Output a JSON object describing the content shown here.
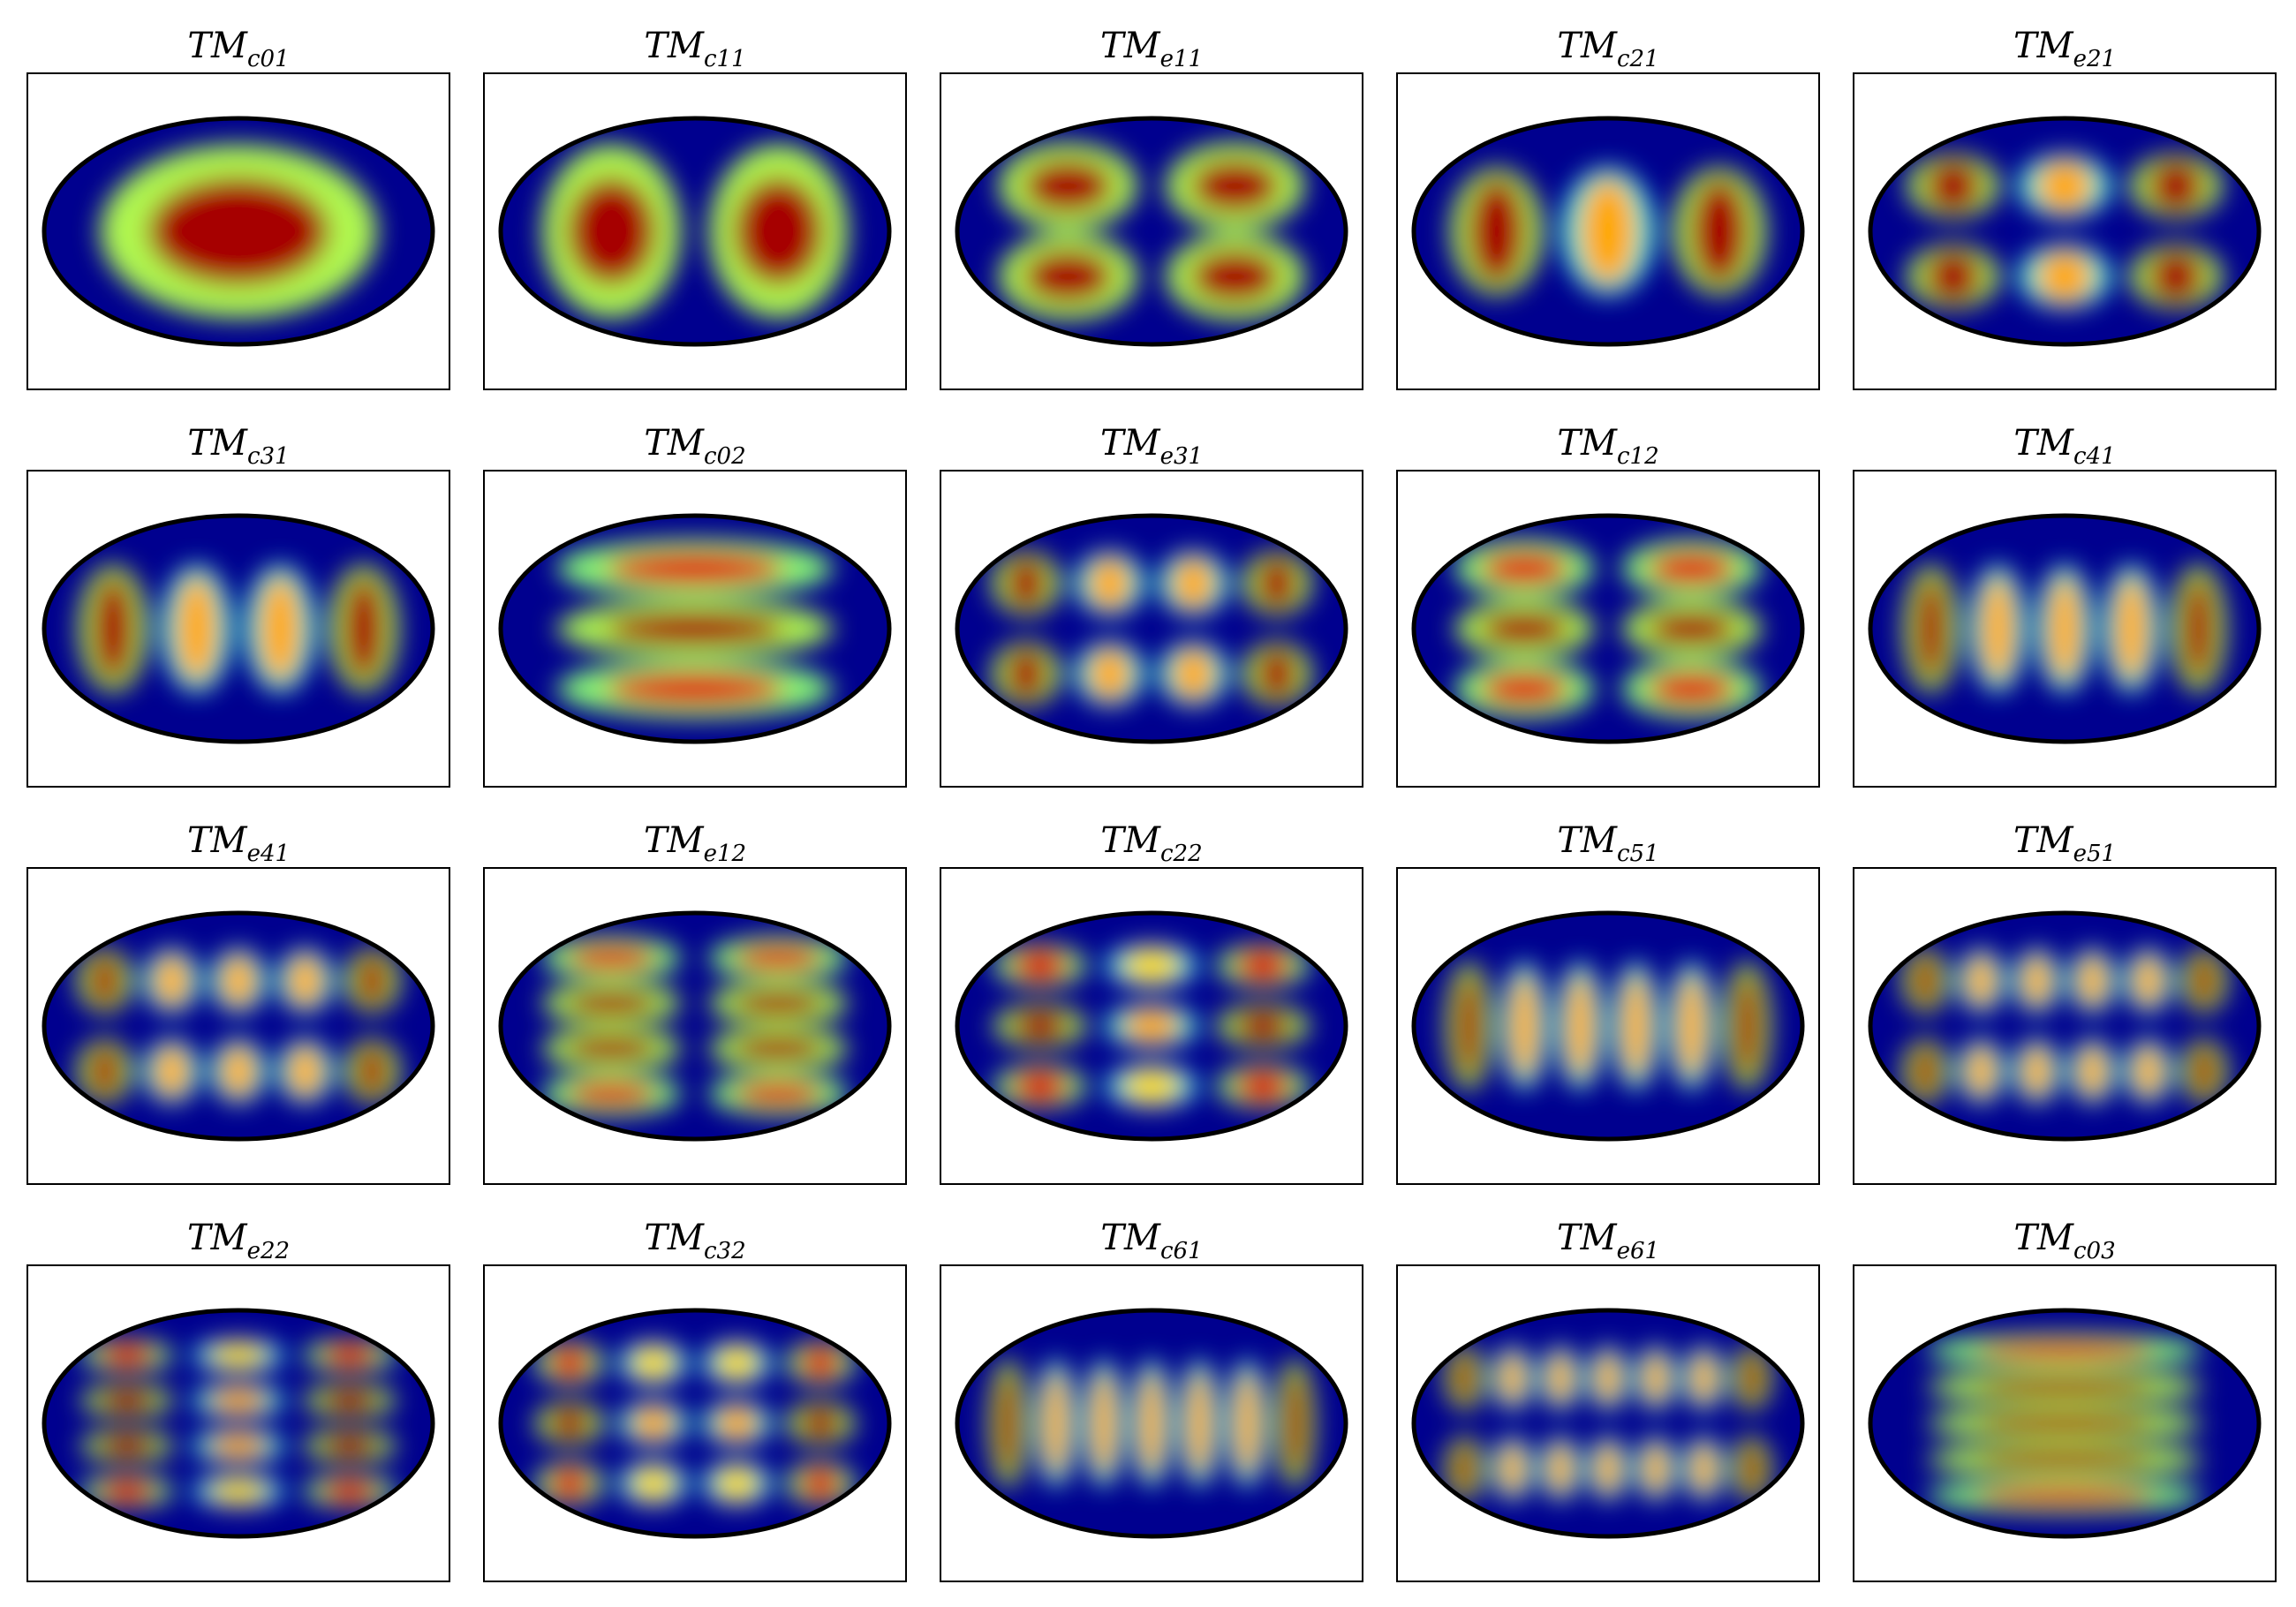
{
  "colors": {
    "background": "#00008f",
    "outline": "#000000",
    "colormap": [
      "#00008f",
      "#0020ff",
      "#00a0ff",
      "#20ffdf",
      "#9fff60",
      "#ffe000",
      "#ff6000",
      "#df0000",
      "#800000"
    ]
  },
  "modes": [
    {
      "label_main": "TM",
      "label_sub": "c01",
      "parity": "c",
      "m": 0,
      "n": 1
    },
    {
      "label_main": "TM",
      "label_sub": "c11",
      "parity": "c",
      "m": 1,
      "n": 1
    },
    {
      "label_main": "TM",
      "label_sub": "e11",
      "parity": "e",
      "m": 1,
      "n": 1
    },
    {
      "label_main": "TM",
      "label_sub": "c21",
      "parity": "c",
      "m": 2,
      "n": 1
    },
    {
      "label_main": "TM",
      "label_sub": "e21",
      "parity": "e",
      "m": 2,
      "n": 1
    },
    {
      "label_main": "TM",
      "label_sub": "c31",
      "parity": "c",
      "m": 3,
      "n": 1
    },
    {
      "label_main": "TM",
      "label_sub": "c02",
      "parity": "c",
      "m": 0,
      "n": 2
    },
    {
      "label_main": "TM",
      "label_sub": "e31",
      "parity": "e",
      "m": 3,
      "n": 1
    },
    {
      "label_main": "TM",
      "label_sub": "c12",
      "parity": "c",
      "m": 1,
      "n": 2
    },
    {
      "label_main": "TM",
      "label_sub": "c41",
      "parity": "c",
      "m": 4,
      "n": 1
    },
    {
      "label_main": "TM",
      "label_sub": "e41",
      "parity": "e",
      "m": 4,
      "n": 1
    },
    {
      "label_main": "TM",
      "label_sub": "e12",
      "parity": "e",
      "m": 1,
      "n": 2
    },
    {
      "label_main": "TM",
      "label_sub": "c22",
      "parity": "c",
      "m": 2,
      "n": 2
    },
    {
      "label_main": "TM",
      "label_sub": "c51",
      "parity": "c",
      "m": 5,
      "n": 1
    },
    {
      "label_main": "TM",
      "label_sub": "e51",
      "parity": "e",
      "m": 5,
      "n": 1
    },
    {
      "label_main": "TM",
      "label_sub": "e22",
      "parity": "e",
      "m": 2,
      "n": 2
    },
    {
      "label_main": "TM",
      "label_sub": "c32",
      "parity": "c",
      "m": 3,
      "n": 2
    },
    {
      "label_main": "TM",
      "label_sub": "c61",
      "parity": "c",
      "m": 6,
      "n": 1
    },
    {
      "label_main": "TM",
      "label_sub": "e61",
      "parity": "e",
      "m": 6,
      "n": 1
    },
    {
      "label_main": "TM",
      "label_sub": "c03",
      "parity": "c",
      "m": 0,
      "n": 3
    }
  ]
}
